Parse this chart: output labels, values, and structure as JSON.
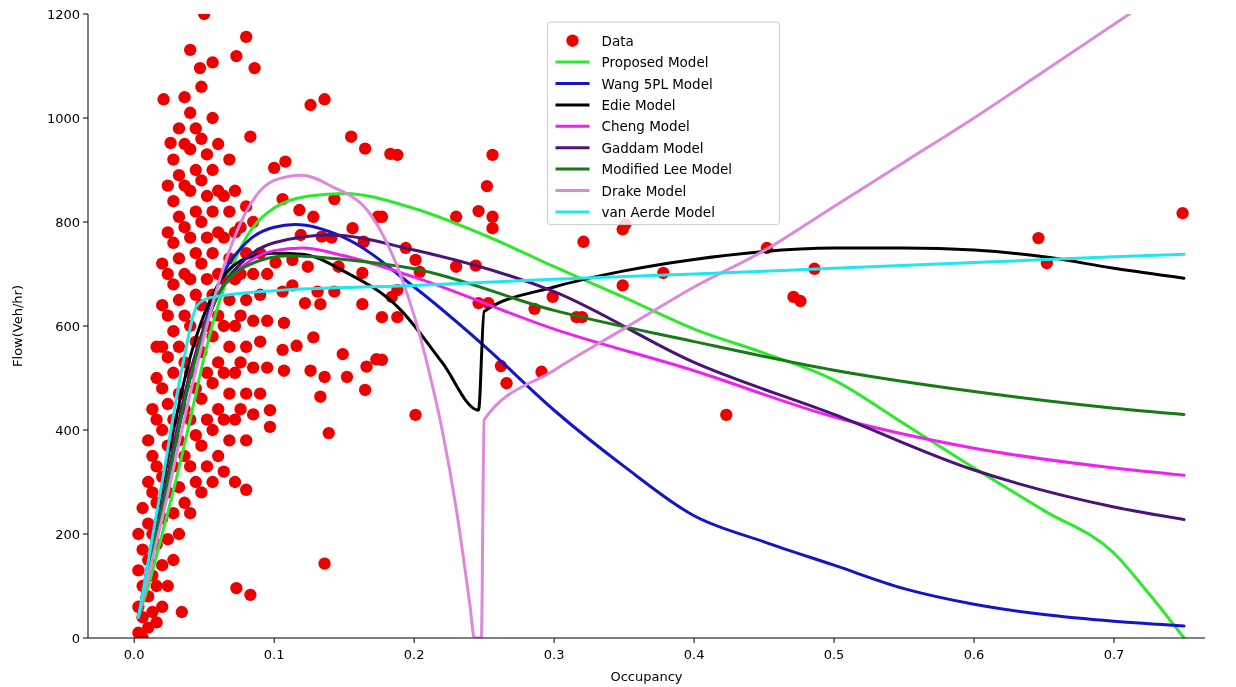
{
  "chart_data": {
    "type": "line",
    "xlabel": "Occupancy",
    "ylabel": "Flow(Veh/hr)",
    "xlim": [
      -0.033,
      0.765
    ],
    "ylim": [
      0,
      1200
    ],
    "xticks": [
      {
        "value": 0,
        "label": "0.0"
      },
      0.1,
      0.2,
      0.3,
      0.4,
      0.5,
      0.6,
      0.7
    ],
    "yticks": [
      0,
      200,
      400,
      600,
      800,
      1000,
      1200
    ],
    "grid": false,
    "legend": "top",
    "series": [
      {
        "name": "Data",
        "type": "scatter",
        "marker": "circle",
        "color": "#ee0000",
        "x": [
          0.003,
          0.003,
          0.003,
          0.003,
          0.006,
          0.006,
          0.006,
          0.006,
          0.006,
          0.01,
          0.01,
          0.01,
          0.01,
          0.01,
          0.01,
          0.013,
          0.013,
          0.013,
          0.013,
          0.013,
          0.013,
          0.016,
          0.016,
          0.016,
          0.016,
          0.016,
          0.016,
          0.016,
          0.016,
          0.02,
          0.02,
          0.02,
          0.02,
          0.02,
          0.02,
          0.02,
          0.02,
          0.02,
          0.024,
          0.024,
          0.024,
          0.024,
          0.024,
          0.024,
          0.024,
          0.024,
          0.024,
          0.024,
          0.028,
          0.028,
          0.028,
          0.028,
          0.028,
          0.028,
          0.028,
          0.028,
          0.028,
          0.028,
          0.032,
          0.032,
          0.032,
          0.032,
          0.032,
          0.032,
          0.032,
          0.032,
          0.032,
          0.032,
          0.036,
          0.036,
          0.036,
          0.036,
          0.036,
          0.036,
          0.036,
          0.036,
          0.036,
          0.036,
          0.04,
          0.04,
          0.04,
          0.04,
          0.04,
          0.04,
          0.04,
          0.04,
          0.04,
          0.04,
          0.044,
          0.044,
          0.044,
          0.044,
          0.044,
          0.044,
          0.044,
          0.044,
          0.044,
          0.048,
          0.048,
          0.048,
          0.048,
          0.048,
          0.048,
          0.048,
          0.048,
          0.048,
          0.048,
          0.052,
          0.052,
          0.052,
          0.052,
          0.052,
          0.052,
          0.052,
          0.052,
          0.056,
          0.056,
          0.056,
          0.056,
          0.056,
          0.056,
          0.056,
          0.056,
          0.056,
          0.06,
          0.06,
          0.06,
          0.06,
          0.06,
          0.06,
          0.06,
          0.06,
          0.064,
          0.064,
          0.064,
          0.064,
          0.064,
          0.064,
          0.064,
          0.068,
          0.068,
          0.068,
          0.068,
          0.068,
          0.068,
          0.068,
          0.072,
          0.072,
          0.072,
          0.072,
          0.072,
          0.072,
          0.072,
          0.076,
          0.076,
          0.076,
          0.076,
          0.076,
          0.08,
          0.08,
          0.08,
          0.08,
          0.08,
          0.08,
          0.085,
          0.085,
          0.085,
          0.085,
          0.085,
          0.09,
          0.09,
          0.09,
          0.09,
          0.095,
          0.095,
          0.095,
          0.05,
          0.08,
          0.04,
          0.073,
          0.056,
          0.047,
          0.086,
          0.021,
          0.126,
          0.136,
          0.155,
          0.165,
          0.183,
          0.026,
          0.083,
          0.108,
          0.1,
          0.106,
          0.143,
          0.118,
          0.128,
          0.174,
          0.156,
          0.141,
          0.164,
          0.119,
          0.134,
          0.101,
          0.113,
          0.124,
          0.146,
          0.163,
          0.113,
          0.131,
          0.143,
          0.106,
          0.122,
          0.163,
          0.177,
          0.133,
          0.107,
          0.116,
          0.128,
          0.106,
          0.149,
          0.173,
          0.166,
          0.107,
          0.126,
          0.136,
          0.152,
          0.165,
          0.133,
          0.097,
          0.097,
          0.139,
          0.08,
          0.136,
          0.073,
          0.083,
          0.034,
          0.188,
          0.256,
          0.252,
          0.23,
          0.246,
          0.256,
          0.256,
          0.177,
          0.194,
          0.201,
          0.204,
          0.23,
          0.244,
          0.188,
          0.184,
          0.188,
          0.177,
          0.246,
          0.253,
          0.286,
          0.299,
          0.321,
          0.349,
          0.351,
          0.349,
          0.378,
          0.316,
          0.32,
          0.262,
          0.291,
          0.266,
          0.201,
          0.423,
          0.452,
          0.471,
          0.486,
          0.476,
          0.646,
          0.652,
          0.749
        ],
        "values": [
          10,
          60,
          130,
          200,
          0,
          40,
          100,
          170,
          250,
          20,
          80,
          150,
          220,
          300,
          380,
          50,
          120,
          200,
          280,
          350,
          440,
          30,
          100,
          180,
          260,
          330,
          420,
          500,
          560,
          60,
          140,
          230,
          310,
          400,
          480,
          560,
          640,
          720,
          100,
          190,
          280,
          370,
          450,
          540,
          620,
          700,
          780,
          870,
          150,
          240,
          330,
          420,
          510,
          590,
          680,
          760,
          840,
          920,
          200,
          290,
          380,
          470,
          560,
          650,
          730,
          810,
          890,
          980,
          260,
          350,
          440,
          530,
          620,
          700,
          790,
          870,
          950,
          1040,
          240,
          330,
          420,
          510,
          600,
          690,
          770,
          860,
          940,
          1010,
          300,
          390,
          480,
          570,
          660,
          740,
          820,
          900,
          980,
          280,
          370,
          460,
          550,
          640,
          720,
          800,
          880,
          960,
          1060,
          330,
          420,
          510,
          600,
          690,
          770,
          850,
          930,
          300,
          400,
          490,
          580,
          660,
          740,
          820,
          900,
          1000,
          350,
          440,
          530,
          620,
          700,
          780,
          860,
          950,
          320,
          420,
          510,
          600,
          690,
          770,
          850,
          380,
          470,
          560,
          650,
          730,
          820,
          920,
          300,
          420,
          510,
          600,
          690,
          780,
          860,
          440,
          530,
          620,
          700,
          790,
          380,
          470,
          560,
          650,
          740,
          830,
          430,
          520,
          610,
          700,
          800,
          470,
          570,
          660,
          740,
          520,
          610,
          700,
          1200,
          1156,
          1131,
          1119,
          1107,
          1096,
          1096,
          1036,
          1025,
          1036,
          964,
          941,
          931,
          952,
          964,
          916,
          904,
          844,
          844,
          823,
          810,
          810,
          788,
          770,
          762,
          775,
          772,
          722,
          727,
          714,
          714,
          702,
          678,
          666,
          666,
          666,
          644,
          642,
          617,
          642,
          606,
          562,
          578,
          554,
          546,
          536,
          522,
          514,
          514,
          502,
          502,
          477,
          464,
          438,
          406,
          394,
          285,
          143,
          96,
          83,
          50,
          929,
          929,
          869,
          810,
          821,
          810,
          788,
          810,
          750,
          727,
          704,
          714,
          716,
          669,
          656,
          617,
          535,
          644,
          644,
          633,
          656,
          762,
          786,
          796,
          678,
          702,
          617,
          617,
          523,
          512,
          490,
          429,
          429,
          750,
          656,
          710,
          648,
          769,
          721,
          817
        ]
      },
      {
        "name": "Proposed Model",
        "color": "#2ee82e",
        "x": [
          0.003,
          0.01,
          0.02,
          0.03,
          0.04,
          0.05,
          0.06,
          0.07,
          0.08,
          0.1,
          0.125,
          0.15,
          0.2,
          0.25,
          0.3,
          0.35,
          0.4,
          0.45,
          0.5,
          0.55,
          0.6,
          0.65,
          0.7,
          0.725,
          0.75
        ],
        "values": [
          40,
          100,
          200,
          305,
          420,
          540,
          640,
          714,
          770,
          827,
          850,
          855,
          826,
          775,
          714,
          655,
          594,
          548,
          496,
          412,
          327,
          245,
          163,
          85,
          0
        ]
      },
      {
        "name": "Wang 5PL Model",
        "color": "#1414c8",
        "x": [
          0.003,
          0.02,
          0.04,
          0.06,
          0.08,
          0.1,
          0.115,
          0.15,
          0.2,
          0.25,
          0.3,
          0.35,
          0.4,
          0.45,
          0.5,
          0.55,
          0.6,
          0.65,
          0.7,
          0.75
        ],
        "values": [
          40,
          250,
          500,
          680,
          760,
          790,
          795,
          770,
          675,
          562,
          438,
          330,
          235,
          185,
          140,
          95,
          65,
          45,
          32,
          23
        ]
      },
      {
        "name": "Edie Model",
        "color": "#000000",
        "x": [
          0.003,
          0.02,
          0.04,
          0.06,
          0.08,
          0.1,
          0.12,
          0.15,
          0.19,
          0.22,
          0.246,
          0.25,
          0.3,
          0.35,
          0.4,
          0.5,
          0.55,
          0.6,
          0.65,
          0.7,
          0.75
        ],
        "values": [
          40,
          290,
          540,
          680,
          730,
          740,
          738,
          705,
          632,
          530,
          438,
          628,
          675,
          706,
          728,
          750,
          750,
          746,
          733,
          711,
          692
        ]
      },
      {
        "name": "Cheng Model",
        "color": "#ee22ee",
        "x": [
          0.003,
          0.02,
          0.04,
          0.06,
          0.08,
          0.1,
          0.12,
          0.15,
          0.2,
          0.3,
          0.4,
          0.5,
          0.6,
          0.7,
          0.75
        ],
        "values": [
          40,
          260,
          510,
          660,
          720,
          745,
          750,
          735,
          694,
          594,
          514,
          425,
          365,
          327,
          313
        ]
      },
      {
        "name": "Gaddam Model",
        "color": "#4b127a",
        "x": [
          0.003,
          0.02,
          0.04,
          0.06,
          0.08,
          0.1,
          0.14,
          0.2,
          0.3,
          0.4,
          0.5,
          0.6,
          0.7,
          0.75
        ],
        "values": [
          40,
          260,
          510,
          660,
          730,
          760,
          775,
          746,
          666,
          530,
          430,
          323,
          252,
          228
        ]
      },
      {
        "name": "Modified Lee Model",
        "color": "#167a16",
        "x": [
          0.003,
          0.02,
          0.04,
          0.06,
          0.08,
          0.11,
          0.15,
          0.2,
          0.3,
          0.4,
          0.5,
          0.6,
          0.7,
          0.75
        ],
        "values": [
          40,
          250,
          500,
          660,
          715,
          735,
          728,
          710,
          630,
          570,
          515,
          474,
          442,
          430
        ]
      },
      {
        "name": "Drake Model",
        "color": "#dd88dd",
        "x": [
          0.003,
          0.02,
          0.04,
          0.06,
          0.08,
          0.1,
          0.12,
          0.14,
          0.17,
          0.19,
          0.2,
          0.21,
          0.22,
          0.23,
          0.24,
          0.243,
          0.248,
          0.25,
          0.3,
          0.35,
          0.4,
          0.45,
          0.5,
          0.55,
          0.6,
          0.65,
          0.711
        ],
        "values": [
          40,
          230,
          470,
          680,
          820,
          880,
          890,
          870,
          810,
          700,
          620,
          520,
          400,
          250,
          60,
          0,
          0,
          420,
          515,
          595,
          675,
          745,
          830,
          915,
          1000,
          1090,
          1200
        ]
      },
      {
        "name": "van Aerde Model",
        "color": "#22e5ee",
        "x": [
          0.003,
          0.02,
          0.035,
          0.045,
          0.055,
          0.1,
          0.2,
          0.3,
          0.4,
          0.5,
          0.6,
          0.7,
          0.75
        ],
        "values": [
          40,
          300,
          530,
          640,
          655,
          668,
          678,
          690,
          700,
          711,
          722,
          733,
          738
        ]
      }
    ]
  }
}
